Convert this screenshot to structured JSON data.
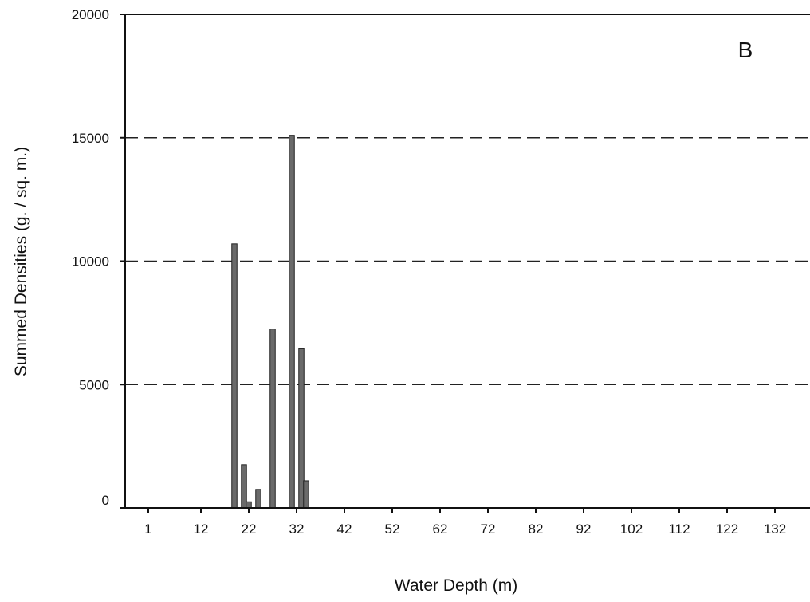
{
  "chart_data": {
    "type": "bar",
    "panel_label": "B",
    "xlabel": "Water Depth  (m)",
    "ylabel": "Summed Densities  (g. / sq. m.)",
    "ylim": [
      0,
      20000
    ],
    "yticks": [
      0,
      5000,
      10000,
      15000,
      20000
    ],
    "ytick_labels": [
      "0",
      "5000",
      "10000",
      "15000",
      "20000"
    ],
    "xticks": [
      1,
      12,
      22,
      32,
      42,
      52,
      62,
      72,
      82,
      92,
      102,
      112,
      122,
      132
    ],
    "xtick_labels": [
      "1",
      "12",
      "22",
      "32",
      "42",
      "52",
      "62",
      "72",
      "82",
      "92",
      "102",
      "112",
      "122",
      "132"
    ],
    "grid": "dashed horizontal at 5000, 10000, 15000",
    "bars": [
      {
        "depth": 19,
        "value": 10700
      },
      {
        "depth": 21,
        "value": 1750
      },
      {
        "depth": 22,
        "value": 250
      },
      {
        "depth": 24,
        "value": 750
      },
      {
        "depth": 27,
        "value": 7250
      },
      {
        "depth": 31,
        "value": 15100
      },
      {
        "depth": 33,
        "value": 6450
      },
      {
        "depth": 34,
        "value": 1100
      }
    ],
    "colors": {
      "bar": "#6a6a6a",
      "bar_edge": "#222222",
      "axis": "#111111",
      "grid": "#222222"
    }
  }
}
